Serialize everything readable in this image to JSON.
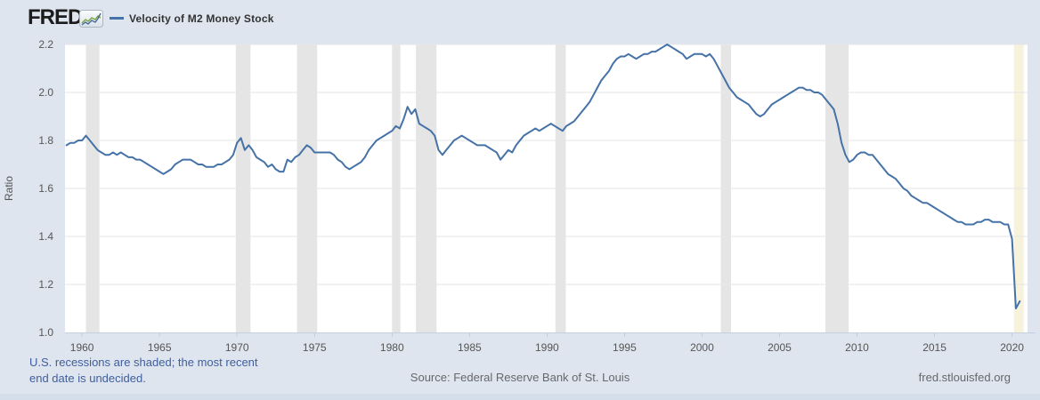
{
  "header": {
    "logo_text": "FRED",
    "registered_mark": "®",
    "series_label": "Velocity of M2 Money Stock"
  },
  "y_axis_title": "Ratio",
  "footer": {
    "recession_note_line1": "U.S. recessions are shaded; the most recent",
    "recession_note_line2": "end date is undecided.",
    "source": "Source: Federal Reserve Bank of St. Louis",
    "site": "fred.stlouisfed.org"
  },
  "colors": {
    "series_line": "#4572a7",
    "page_background": "#dee5ee",
    "plot_background": "#ffffff",
    "grid_line": "#e6e6e6",
    "recession_band": "#e5e5e5",
    "ongoing_recession_band": "#f6f2dc",
    "axis_line": "#c3cfdd",
    "tick_label": "#555555"
  },
  "chart_data": {
    "type": "line",
    "title": "Velocity of M2 Money Stock",
    "xlabel": "",
    "ylabel": "Ratio",
    "frequency": "quarterly",
    "xlim": [
      1958.9,
      2021.0
    ],
    "ylim": [
      1.0,
      2.2
    ],
    "x_ticks": [
      1960,
      1965,
      1970,
      1975,
      1980,
      1985,
      1990,
      1995,
      2000,
      2005,
      2010,
      2015,
      2020
    ],
    "y_ticks": [
      1.0,
      1.2,
      1.4,
      1.6,
      1.8,
      2.0,
      2.2
    ],
    "grid": true,
    "legend_position": "top-left",
    "recession_bands": [
      [
        1960.25,
        1961.12
      ],
      [
        1969.92,
        1970.87
      ],
      [
        1973.87,
        1975.17
      ],
      [
        1980.0,
        1980.54
      ],
      [
        1981.54,
        1982.87
      ],
      [
        1990.54,
        1991.21
      ],
      [
        2001.21,
        2001.87
      ],
      [
        2007.96,
        2009.46
      ]
    ],
    "ongoing_recession_band": [
      2020.12,
      2020.75
    ],
    "series": [
      {
        "name": "Velocity of M2 Money Stock",
        "color": "#4572a7",
        "x_start": 1959.0,
        "x_step": 0.25,
        "values": [
          1.78,
          1.79,
          1.79,
          1.8,
          1.8,
          1.82,
          1.8,
          1.78,
          1.76,
          1.75,
          1.74,
          1.74,
          1.75,
          1.74,
          1.75,
          1.74,
          1.73,
          1.73,
          1.72,
          1.72,
          1.71,
          1.7,
          1.69,
          1.68,
          1.67,
          1.66,
          1.67,
          1.68,
          1.7,
          1.71,
          1.72,
          1.72,
          1.72,
          1.71,
          1.7,
          1.7,
          1.69,
          1.69,
          1.69,
          1.7,
          1.7,
          1.71,
          1.72,
          1.74,
          1.79,
          1.81,
          1.76,
          1.78,
          1.76,
          1.73,
          1.72,
          1.71,
          1.69,
          1.7,
          1.68,
          1.67,
          1.67,
          1.72,
          1.71,
          1.73,
          1.74,
          1.76,
          1.78,
          1.77,
          1.75,
          1.75,
          1.75,
          1.75,
          1.75,
          1.74,
          1.72,
          1.71,
          1.69,
          1.68,
          1.69,
          1.7,
          1.71,
          1.73,
          1.76,
          1.78,
          1.8,
          1.81,
          1.82,
          1.83,
          1.84,
          1.86,
          1.85,
          1.89,
          1.94,
          1.91,
          1.93,
          1.87,
          1.86,
          1.85,
          1.84,
          1.82,
          1.76,
          1.74,
          1.76,
          1.78,
          1.8,
          1.81,
          1.82,
          1.81,
          1.8,
          1.79,
          1.78,
          1.78,
          1.78,
          1.77,
          1.76,
          1.75,
          1.72,
          1.74,
          1.76,
          1.75,
          1.78,
          1.8,
          1.82,
          1.83,
          1.84,
          1.85,
          1.84,
          1.85,
          1.86,
          1.87,
          1.86,
          1.85,
          1.84,
          1.86,
          1.87,
          1.88,
          1.9,
          1.92,
          1.94,
          1.96,
          1.99,
          2.02,
          2.05,
          2.07,
          2.09,
          2.12,
          2.14,
          2.15,
          2.15,
          2.16,
          2.15,
          2.14,
          2.15,
          2.16,
          2.16,
          2.17,
          2.17,
          2.18,
          2.19,
          2.2,
          2.19,
          2.18,
          2.17,
          2.16,
          2.14,
          2.15,
          2.16,
          2.16,
          2.16,
          2.15,
          2.16,
          2.14,
          2.11,
          2.08,
          2.05,
          2.02,
          2.0,
          1.98,
          1.97,
          1.96,
          1.95,
          1.93,
          1.91,
          1.9,
          1.91,
          1.93,
          1.95,
          1.96,
          1.97,
          1.98,
          1.99,
          2.0,
          2.01,
          2.02,
          2.02,
          2.01,
          2.01,
          2.0,
          2.0,
          1.99,
          1.97,
          1.95,
          1.93,
          1.87,
          1.79,
          1.74,
          1.71,
          1.72,
          1.74,
          1.75,
          1.75,
          1.74,
          1.74,
          1.72,
          1.7,
          1.68,
          1.66,
          1.65,
          1.64,
          1.62,
          1.6,
          1.59,
          1.57,
          1.56,
          1.55,
          1.54,
          1.54,
          1.53,
          1.52,
          1.51,
          1.5,
          1.49,
          1.48,
          1.47,
          1.46,
          1.46,
          1.45,
          1.45,
          1.45,
          1.46,
          1.46,
          1.47,
          1.47,
          1.46,
          1.46,
          1.46,
          1.45,
          1.45,
          1.39,
          1.1,
          1.13
        ]
      }
    ]
  }
}
